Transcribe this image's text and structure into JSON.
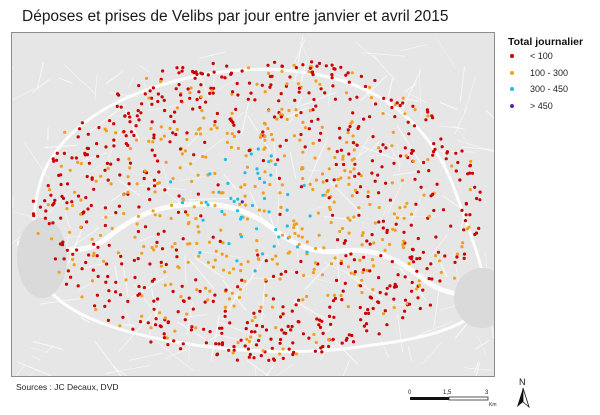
{
  "map": {
    "title": "Déposes et prises de Velibs par jour entre janvier et avril 2015",
    "legend": {
      "title": "Total journalier",
      "classes": [
        {
          "label": "< 100",
          "color": "#cc0000"
        },
        {
          "label": "100 - 300",
          "color": "#f0a020"
        },
        {
          "label": "300 - 450",
          "color": "#22bde6"
        },
        {
          "label": "> 450",
          "color": "#6a1fb0"
        }
      ]
    },
    "sources": "Sources : JC Decaux, DVD",
    "scale": {
      "ticks": [
        "0",
        "1,5",
        "3"
      ],
      "unit": "Km"
    },
    "north_label": "N",
    "colors": {
      "basemap": "#e6e6e6",
      "streets": "#ffffff",
      "river": "#ffffff",
      "frame": "#8c8c8c"
    },
    "icons": {
      "north_arrow": "north-arrow-icon"
    }
  }
}
